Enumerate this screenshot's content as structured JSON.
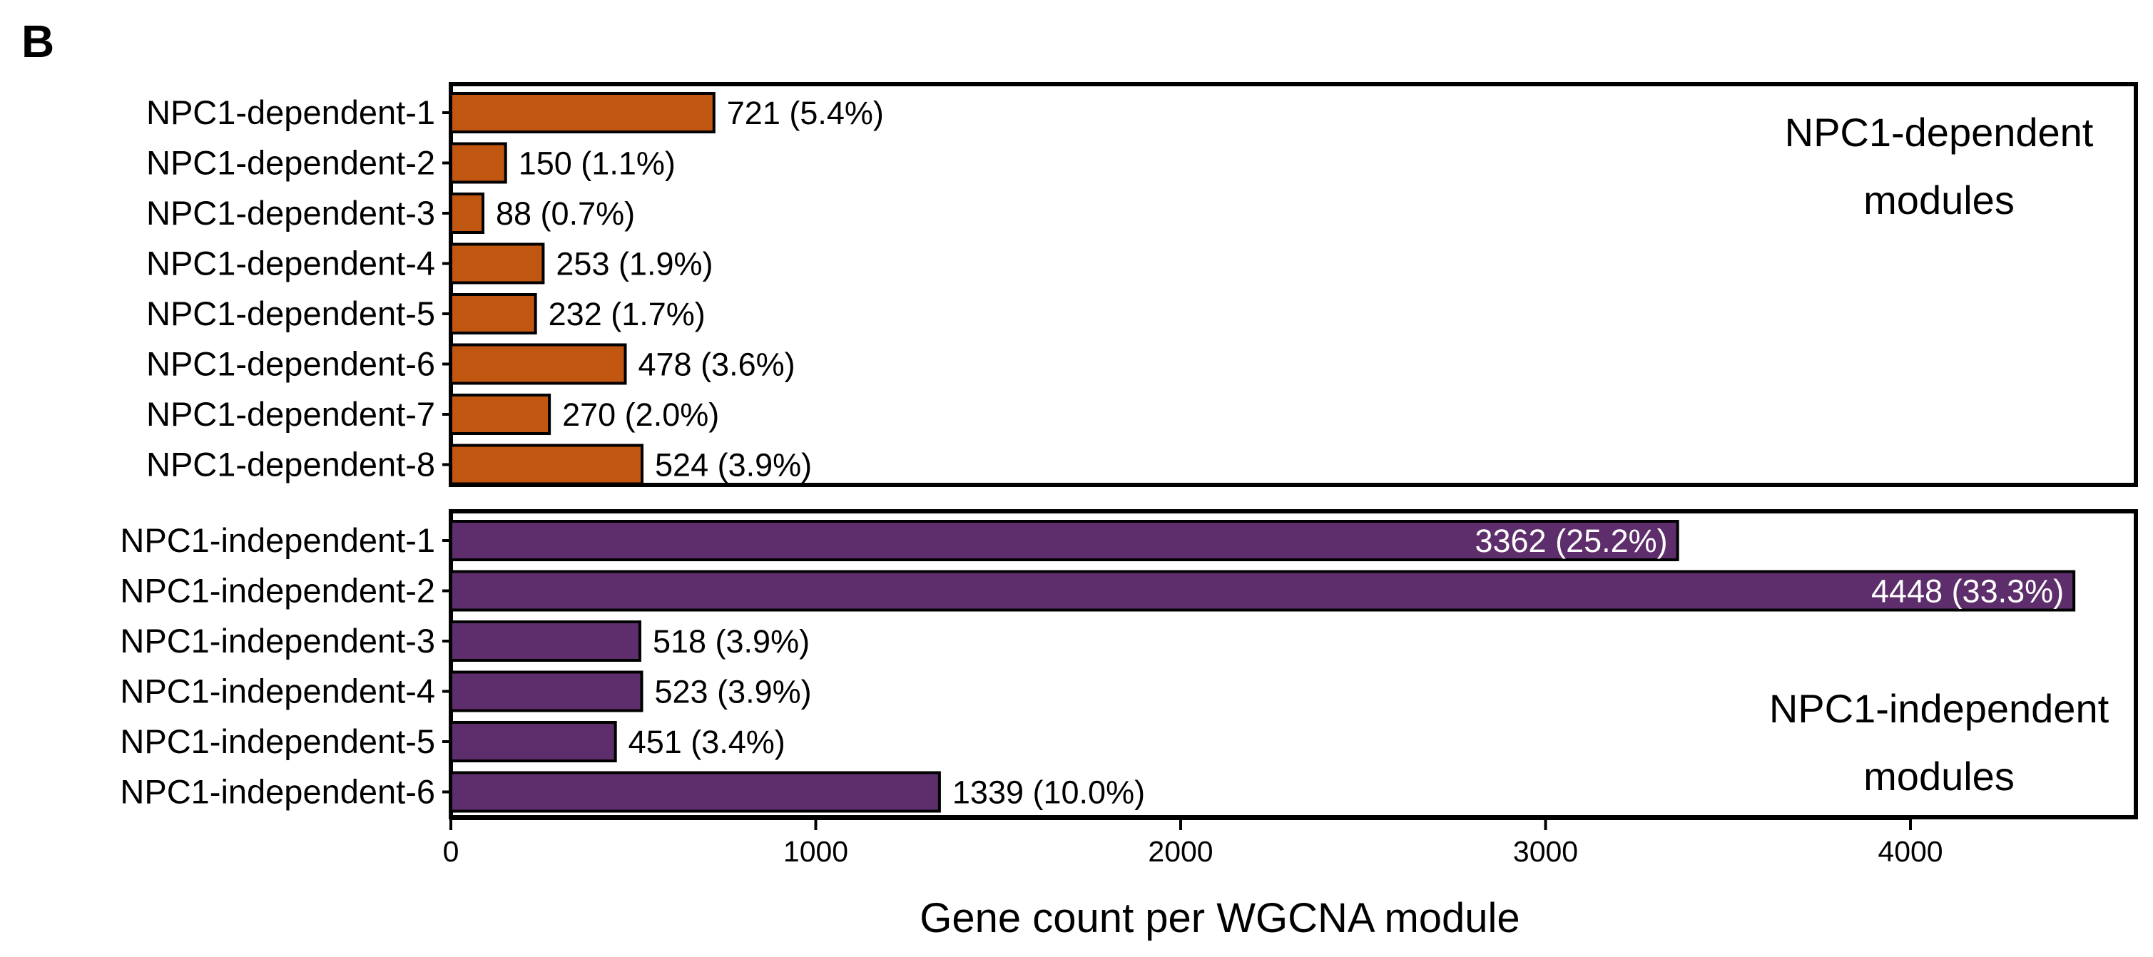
{
  "panel_label": "B",
  "chart_data": {
    "type": "bar",
    "orientation": "horizontal",
    "xlabel": "Gene count per WGCNA module",
    "ylabel": "",
    "xlim": [
      0,
      4600
    ],
    "xticks": [
      0,
      1000,
      2000,
      3000,
      4000
    ],
    "grid": false,
    "groups": [
      {
        "name": "NPC1-dependent",
        "label_lines": [
          "NPC1-dependent",
          "modules"
        ],
        "label_position": "top-right",
        "color": "#c0560f",
        "categories": [
          "NPC1-dependent-1",
          "NPC1-dependent-2",
          "NPC1-dependent-3",
          "NPC1-dependent-4",
          "NPC1-dependent-5",
          "NPC1-dependent-6",
          "NPC1-dependent-7",
          "NPC1-dependent-8"
        ],
        "values": [
          721,
          150,
          88,
          253,
          232,
          478,
          270,
          524
        ],
        "labels": [
          "721 (5.4%)",
          "150 (1.1%)",
          "88 (0.7%)",
          "253 (1.9%)",
          "232 (1.7%)",
          "478 (3.6%)",
          "270 (2.0%)",
          "524 (3.9%)"
        ]
      },
      {
        "name": "NPC1-independent",
        "label_lines": [
          "NPC1-independent",
          "modules"
        ],
        "label_position": "bottom-right",
        "color": "#5e2d6b",
        "categories": [
          "NPC1-independent-1",
          "NPC1-independent-2",
          "NPC1-independent-3",
          "NPC1-independent-4",
          "NPC1-independent-5",
          "NPC1-independent-6"
        ],
        "values": [
          3362,
          4448,
          518,
          523,
          451,
          1339
        ],
        "labels": [
          "3362 (25.2%)",
          "4448 (33.3%)",
          "518 (3.9%)",
          "523 (3.9%)",
          "451 (3.4%)",
          "1339 (10.0%)"
        ],
        "labels_inside": [
          true,
          true,
          false,
          false,
          false,
          false
        ]
      }
    ]
  }
}
